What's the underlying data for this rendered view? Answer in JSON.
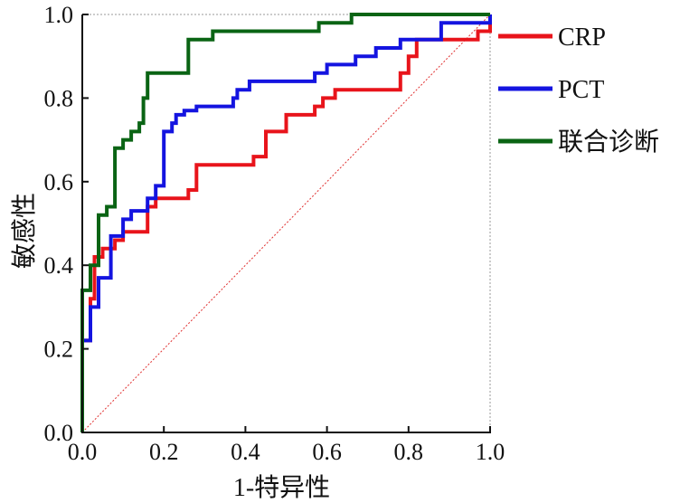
{
  "chart_data": {
    "type": "line",
    "title": "",
    "xlabel": "1-特异性",
    "ylabel": "敏感性",
    "xlim": [
      0,
      1
    ],
    "ylim": [
      0,
      1
    ],
    "x_ticks": [
      "0.0",
      "0.2",
      "0.4",
      "0.6",
      "0.8",
      "1.0"
    ],
    "y_ticks": [
      "0.0",
      "0.2",
      "0.4",
      "0.6",
      "0.8",
      "1.0"
    ],
    "grid": false,
    "legend_position": "right",
    "reference_line": {
      "from": [
        0,
        0
      ],
      "to": [
        1,
        1
      ],
      "color": "#e03030",
      "style": "dotted"
    },
    "series": [
      {
        "name": "CRP",
        "color": "#e8141b",
        "points": [
          [
            0,
            0
          ],
          [
            0,
            0.22
          ],
          [
            0.02,
            0.22
          ],
          [
            0.02,
            0.32
          ],
          [
            0.03,
            0.32
          ],
          [
            0.03,
            0.42
          ],
          [
            0.05,
            0.42
          ],
          [
            0.05,
            0.44
          ],
          [
            0.08,
            0.44
          ],
          [
            0.08,
            0.46
          ],
          [
            0.1,
            0.46
          ],
          [
            0.1,
            0.48
          ],
          [
            0.16,
            0.48
          ],
          [
            0.16,
            0.54
          ],
          [
            0.18,
            0.54
          ],
          [
            0.18,
            0.56
          ],
          [
            0.26,
            0.56
          ],
          [
            0.26,
            0.58
          ],
          [
            0.28,
            0.58
          ],
          [
            0.28,
            0.64
          ],
          [
            0.42,
            0.64
          ],
          [
            0.42,
            0.66
          ],
          [
            0.45,
            0.66
          ],
          [
            0.45,
            0.72
          ],
          [
            0.5,
            0.72
          ],
          [
            0.5,
            0.76
          ],
          [
            0.57,
            0.76
          ],
          [
            0.57,
            0.78
          ],
          [
            0.59,
            0.78
          ],
          [
            0.59,
            0.8
          ],
          [
            0.62,
            0.8
          ],
          [
            0.62,
            0.82
          ],
          [
            0.78,
            0.82
          ],
          [
            0.78,
            0.86
          ],
          [
            0.8,
            0.86
          ],
          [
            0.8,
            0.9
          ],
          [
            0.82,
            0.9
          ],
          [
            0.82,
            0.94
          ],
          [
            0.97,
            0.94
          ],
          [
            0.97,
            0.96
          ],
          [
            1,
            0.96
          ],
          [
            1,
            1
          ]
        ]
      },
      {
        "name": "PCT",
        "color": "#1414e0",
        "points": [
          [
            0,
            0
          ],
          [
            0,
            0.22
          ],
          [
            0.02,
            0.22
          ],
          [
            0.02,
            0.3
          ],
          [
            0.04,
            0.3
          ],
          [
            0.04,
            0.37
          ],
          [
            0.07,
            0.37
          ],
          [
            0.07,
            0.47
          ],
          [
            0.1,
            0.47
          ],
          [
            0.1,
            0.51
          ],
          [
            0.12,
            0.51
          ],
          [
            0.12,
            0.53
          ],
          [
            0.16,
            0.53
          ],
          [
            0.16,
            0.56
          ],
          [
            0.18,
            0.56
          ],
          [
            0.18,
            0.59
          ],
          [
            0.2,
            0.59
          ],
          [
            0.2,
            0.72
          ],
          [
            0.22,
            0.72
          ],
          [
            0.22,
            0.74
          ],
          [
            0.23,
            0.74
          ],
          [
            0.23,
            0.76
          ],
          [
            0.25,
            0.76
          ],
          [
            0.25,
            0.77
          ],
          [
            0.28,
            0.77
          ],
          [
            0.28,
            0.78
          ],
          [
            0.37,
            0.78
          ],
          [
            0.37,
            0.8
          ],
          [
            0.38,
            0.8
          ],
          [
            0.38,
            0.82
          ],
          [
            0.41,
            0.82
          ],
          [
            0.41,
            0.84
          ],
          [
            0.57,
            0.84
          ],
          [
            0.57,
            0.86
          ],
          [
            0.6,
            0.86
          ],
          [
            0.6,
            0.88
          ],
          [
            0.67,
            0.88
          ],
          [
            0.67,
            0.9
          ],
          [
            0.72,
            0.9
          ],
          [
            0.72,
            0.92
          ],
          [
            0.78,
            0.92
          ],
          [
            0.78,
            0.94
          ],
          [
            0.88,
            0.94
          ],
          [
            0.88,
            0.98
          ],
          [
            1,
            0.98
          ],
          [
            1,
            1
          ]
        ]
      },
      {
        "name": "联合诊断",
        "color": "#0a6414",
        "points": [
          [
            0,
            0
          ],
          [
            0,
            0.34
          ],
          [
            0.02,
            0.34
          ],
          [
            0.02,
            0.4
          ],
          [
            0.04,
            0.4
          ],
          [
            0.04,
            0.52
          ],
          [
            0.06,
            0.52
          ],
          [
            0.06,
            0.54
          ],
          [
            0.08,
            0.54
          ],
          [
            0.08,
            0.68
          ],
          [
            0.1,
            0.68
          ],
          [
            0.1,
            0.7
          ],
          [
            0.12,
            0.7
          ],
          [
            0.12,
            0.72
          ],
          [
            0.14,
            0.72
          ],
          [
            0.14,
            0.74
          ],
          [
            0.15,
            0.74
          ],
          [
            0.15,
            0.8
          ],
          [
            0.16,
            0.8
          ],
          [
            0.16,
            0.86
          ],
          [
            0.26,
            0.86
          ],
          [
            0.26,
            0.94
          ],
          [
            0.32,
            0.94
          ],
          [
            0.32,
            0.96
          ],
          [
            0.58,
            0.96
          ],
          [
            0.58,
            0.98
          ],
          [
            0.66,
            0.98
          ],
          [
            0.66,
            1
          ],
          [
            1,
            1
          ]
        ]
      }
    ]
  }
}
